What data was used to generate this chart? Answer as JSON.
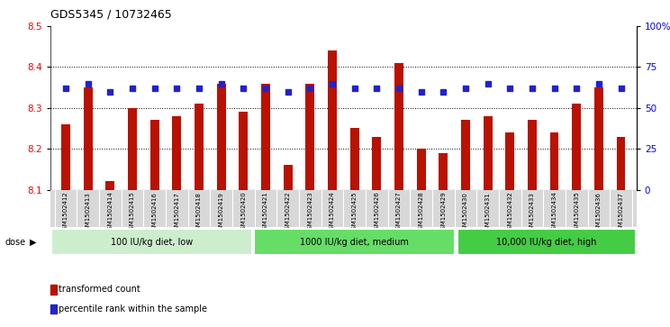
{
  "title": "GDS5345 / 10732465",
  "samples": [
    "GSM1502412",
    "GSM1502413",
    "GSM1502414",
    "GSM1502415",
    "GSM1502416",
    "GSM1502417",
    "GSM1502418",
    "GSM1502419",
    "GSM1502420",
    "GSM1502421",
    "GSM1502422",
    "GSM1502423",
    "GSM1502424",
    "GSM1502425",
    "GSM1502426",
    "GSM1502427",
    "GSM1502428",
    "GSM1502429",
    "GSM1502430",
    "GSM1502431",
    "GSM1502432",
    "GSM1502433",
    "GSM1502434",
    "GSM1502435",
    "GSM1502436",
    "GSM1502437"
  ],
  "bar_values": [
    8.26,
    8.35,
    8.12,
    8.3,
    8.27,
    8.28,
    8.31,
    8.36,
    8.29,
    8.36,
    8.16,
    8.36,
    8.44,
    8.25,
    8.23,
    8.41,
    8.2,
    8.19,
    8.27,
    8.28,
    8.24,
    8.27,
    8.24,
    8.31,
    8.35,
    8.23
  ],
  "percentile_values": [
    62,
    65,
    60,
    62,
    62,
    62,
    62,
    65,
    62,
    62,
    60,
    62,
    65,
    62,
    62,
    62,
    60,
    60,
    62,
    65,
    62,
    62,
    62,
    62,
    65,
    62
  ],
  "ymin": 8.1,
  "ymax": 8.5,
  "bar_color": "#bb1100",
  "dot_color": "#2222cc",
  "plot_bg": "#ffffff",
  "tick_area_bg": "#d8d8d8",
  "groups": [
    {
      "label": "100 IU/kg diet, low",
      "start": 0,
      "end": 9,
      "color": "#cceecc"
    },
    {
      "label": "1000 IU/kg diet, medium",
      "start": 9,
      "end": 18,
      "color": "#66dd66"
    },
    {
      "label": "10,000 IU/kg diet, high",
      "start": 18,
      "end": 26,
      "color": "#44cc44"
    }
  ],
  "dose_label": "dose",
  "legend_bar_label": "transformed count",
  "legend_dot_label": "percentile rank within the sample",
  "right_axis_ticks": [
    0,
    25,
    50,
    75,
    100
  ],
  "right_axis_labels": [
    "0",
    "25",
    "50",
    "75",
    "100%"
  ],
  "left_yticks": [
    8.1,
    8.2,
    8.3,
    8.4,
    8.5
  ],
  "grid_lines": [
    8.2,
    8.3,
    8.4
  ]
}
